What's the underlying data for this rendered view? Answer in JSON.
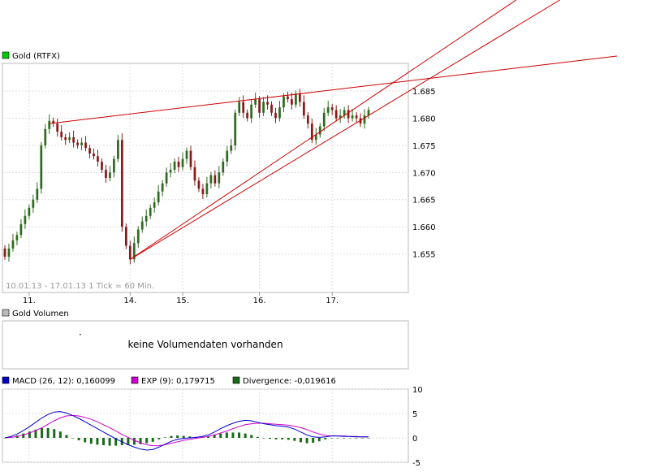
{
  "chart_data": [
    {
      "type": "candlestick",
      "legend_label": "Gold (RTFX)",
      "legend_color": "#00cc00",
      "period_label": "10.01.13 - 17.01.13   1 Tick = 60 Min.",
      "x_tick_labels": [
        "11.",
        "14.",
        "15.",
        "16.",
        "17."
      ],
      "y_tick_labels": [
        "1.655",
        "1.660",
        "1.665",
        "1.670",
        "1.675",
        "1.680",
        "1.685"
      ],
      "ylim": [
        1650,
        1688
      ],
      "grid": true,
      "up_color": "#2f6b1f",
      "down_color": "#8b1a1a",
      "trendline_color": "#cc0000",
      "close_values": [
        1654.5,
        1656.0,
        1657.5,
        1658.5,
        1660.5,
        1662.0,
        1663.5,
        1665.0,
        1667.0,
        1675.0,
        1678.0,
        1679.5,
        1679.0,
        1677.5,
        1676.5,
        1676.0,
        1676.5,
        1675.5,
        1675.0,
        1675.5,
        1674.5,
        1673.5,
        1673.0,
        1672.0,
        1670.5,
        1669.0,
        1670.0,
        1672.5,
        1676.0,
        1660.0,
        1656.5,
        1654.0,
        1657.0,
        1659.5,
        1661.0,
        1662.0,
        1663.5,
        1664.5,
        1666.5,
        1668.0,
        1670.0,
        1670.5,
        1672.0,
        1671.0,
        1672.5,
        1674.0,
        1671.0,
        1668.5,
        1667.0,
        1666.0,
        1668.0,
        1669.5,
        1668.0,
        1670.0,
        1672.0,
        1674.0,
        1675.0,
        1681.0,
        1683.0,
        1681.0,
        1680.0,
        1682.5,
        1683.5,
        1681.0,
        1683.0,
        1682.5,
        1681.0,
        1680.0,
        1682.0,
        1684.0,
        1683.5,
        1682.5,
        1684.5,
        1683.0,
        1680.5,
        1679.0,
        1676.0,
        1677.0,
        1678.5,
        1681.0,
        1682.0,
        1681.5,
        1680.0,
        1680.5,
        1681.5,
        1680.0,
        1680.5,
        1680.0,
        1679.0,
        1680.5,
        1681.5
      ],
      "open_values": [
        1656.0,
        1654.5,
        1656.0,
        1657.5,
        1658.5,
        1660.5,
        1662.0,
        1663.5,
        1665.0,
        1667.0,
        1675.0,
        1678.0,
        1679.5,
        1679.0,
        1677.5,
        1676.5,
        1676.0,
        1676.5,
        1675.5,
        1675.0,
        1675.5,
        1674.5,
        1673.5,
        1673.0,
        1672.0,
        1670.5,
        1669.0,
        1670.0,
        1672.5,
        1676.0,
        1660.0,
        1656.5,
        1654.0,
        1657.0,
        1659.5,
        1661.0,
        1662.0,
        1663.5,
        1664.5,
        1666.5,
        1668.0,
        1670.0,
        1670.5,
        1672.0,
        1671.0,
        1672.5,
        1674.0,
        1671.0,
        1668.5,
        1667.0,
        1666.0,
        1668.0,
        1669.5,
        1668.0,
        1670.0,
        1672.0,
        1674.0,
        1675.0,
        1681.0,
        1683.0,
        1681.0,
        1680.0,
        1682.5,
        1683.5,
        1681.0,
        1683.0,
        1682.5,
        1681.0,
        1680.0,
        1682.0,
        1684.0,
        1683.5,
        1682.5,
        1684.5,
        1683.0,
        1680.5,
        1679.0,
        1676.0,
        1677.0,
        1678.5,
        1681.0,
        1682.0,
        1681.5,
        1680.0,
        1680.5,
        1681.5,
        1680.0,
        1680.5,
        1680.0,
        1679.0,
        1680.5
      ],
      "trendlines": [
        {
          "from": [
            1654.0,
            31
          ],
          "to": [
            1683.5,
            90
          ]
        },
        {
          "from": [
            1654.0,
            31
          ],
          "to": [
            1680.5,
            90
          ]
        },
        {
          "from": [
            1679.0,
            11
          ],
          "to": [
            1686.0,
            90
          ]
        }
      ]
    },
    {
      "type": "volume",
      "legend_label": "Gold Volumen",
      "legend_color": "#bbbbbb",
      "message": "keine Volumendaten vorhanden",
      "dot": "·"
    },
    {
      "type": "indicator",
      "legend": [
        {
          "label": "MACD (26, 12): 0,160099",
          "color": "#0000cc"
        },
        {
          "label": "EXP (9): 0,179715",
          "color": "#cc00cc"
        },
        {
          "label": "Divergence: -0,019616",
          "color": "#1a6b1a"
        }
      ],
      "y_tick_labels": [
        "10",
        "5",
        "0",
        "-5"
      ],
      "ylim": [
        -5,
        10
      ],
      "macd": [
        0,
        0.3,
        0.8,
        1.5,
        2.3,
        3.2,
        4.1,
        4.8,
        5.3,
        5.4,
        5.1,
        4.6,
        4.0,
        3.3,
        2.6,
        1.9,
        1.2,
        0.5,
        -0.2,
        -0.8,
        -1.4,
        -1.9,
        -2.3,
        -2.5,
        -2.4,
        -1.9,
        -1.3,
        -0.7,
        -0.3,
        -0.1,
        0,
        0.1,
        0.3,
        0.6,
        1.2,
        1.9,
        2.5,
        3.0,
        3.4,
        3.6,
        3.5,
        3.2,
        2.9,
        2.7,
        2.5,
        2.4,
        2.2,
        1.8,
        1.2,
        0.6,
        0.2,
        0.1,
        0.2,
        0.4,
        0.4,
        0.3,
        0.3,
        0.2,
        0.2,
        0.2
      ],
      "exp": [
        0,
        0.1,
        0.3,
        0.6,
        1.0,
        1.5,
        2.1,
        2.8,
        3.5,
        4.1,
        4.5,
        4.6,
        4.5,
        4.2,
        3.8,
        3.3,
        2.7,
        2.1,
        1.4,
        0.7,
        0.1,
        -0.5,
        -1.0,
        -1.4,
        -1.6,
        -1.6,
        -1.4,
        -1.1,
        -0.8,
        -0.5,
        -0.3,
        -0.1,
        0.1,
        0.3,
        0.6,
        1.0,
        1.4,
        1.9,
        2.3,
        2.7,
        2.9,
        3.0,
        3.0,
        2.9,
        2.8,
        2.7,
        2.6,
        2.4,
        2.1,
        1.7,
        1.2,
        0.8,
        0.5,
        0.4,
        0.4,
        0.4,
        0.3,
        0.3,
        0.2,
        0.2
      ],
      "divergence": [
        0,
        0.2,
        0.5,
        0.9,
        1.3,
        1.7,
        2.0,
        2.0,
        1.8,
        1.3,
        0.6,
        0,
        -0.5,
        -0.9,
        -1.2,
        -1.4,
        -1.5,
        -1.6,
        -1.6,
        -1.5,
        -1.5,
        -1.4,
        -1.3,
        -1.1,
        -0.8,
        -0.3,
        0.1,
        0.4,
        0.5,
        0.4,
        0.3,
        0.2,
        0.2,
        0.3,
        0.6,
        0.9,
        1.1,
        1.1,
        1.1,
        0.9,
        0.6,
        0.2,
        -0.1,
        -0.2,
        -0.3,
        -0.3,
        -0.4,
        -0.6,
        -0.9,
        -1.1,
        -1.0,
        -0.7,
        -0.3,
        0,
        0,
        -0.1,
        0,
        -0.1,
        0,
        0
      ]
    }
  ]
}
